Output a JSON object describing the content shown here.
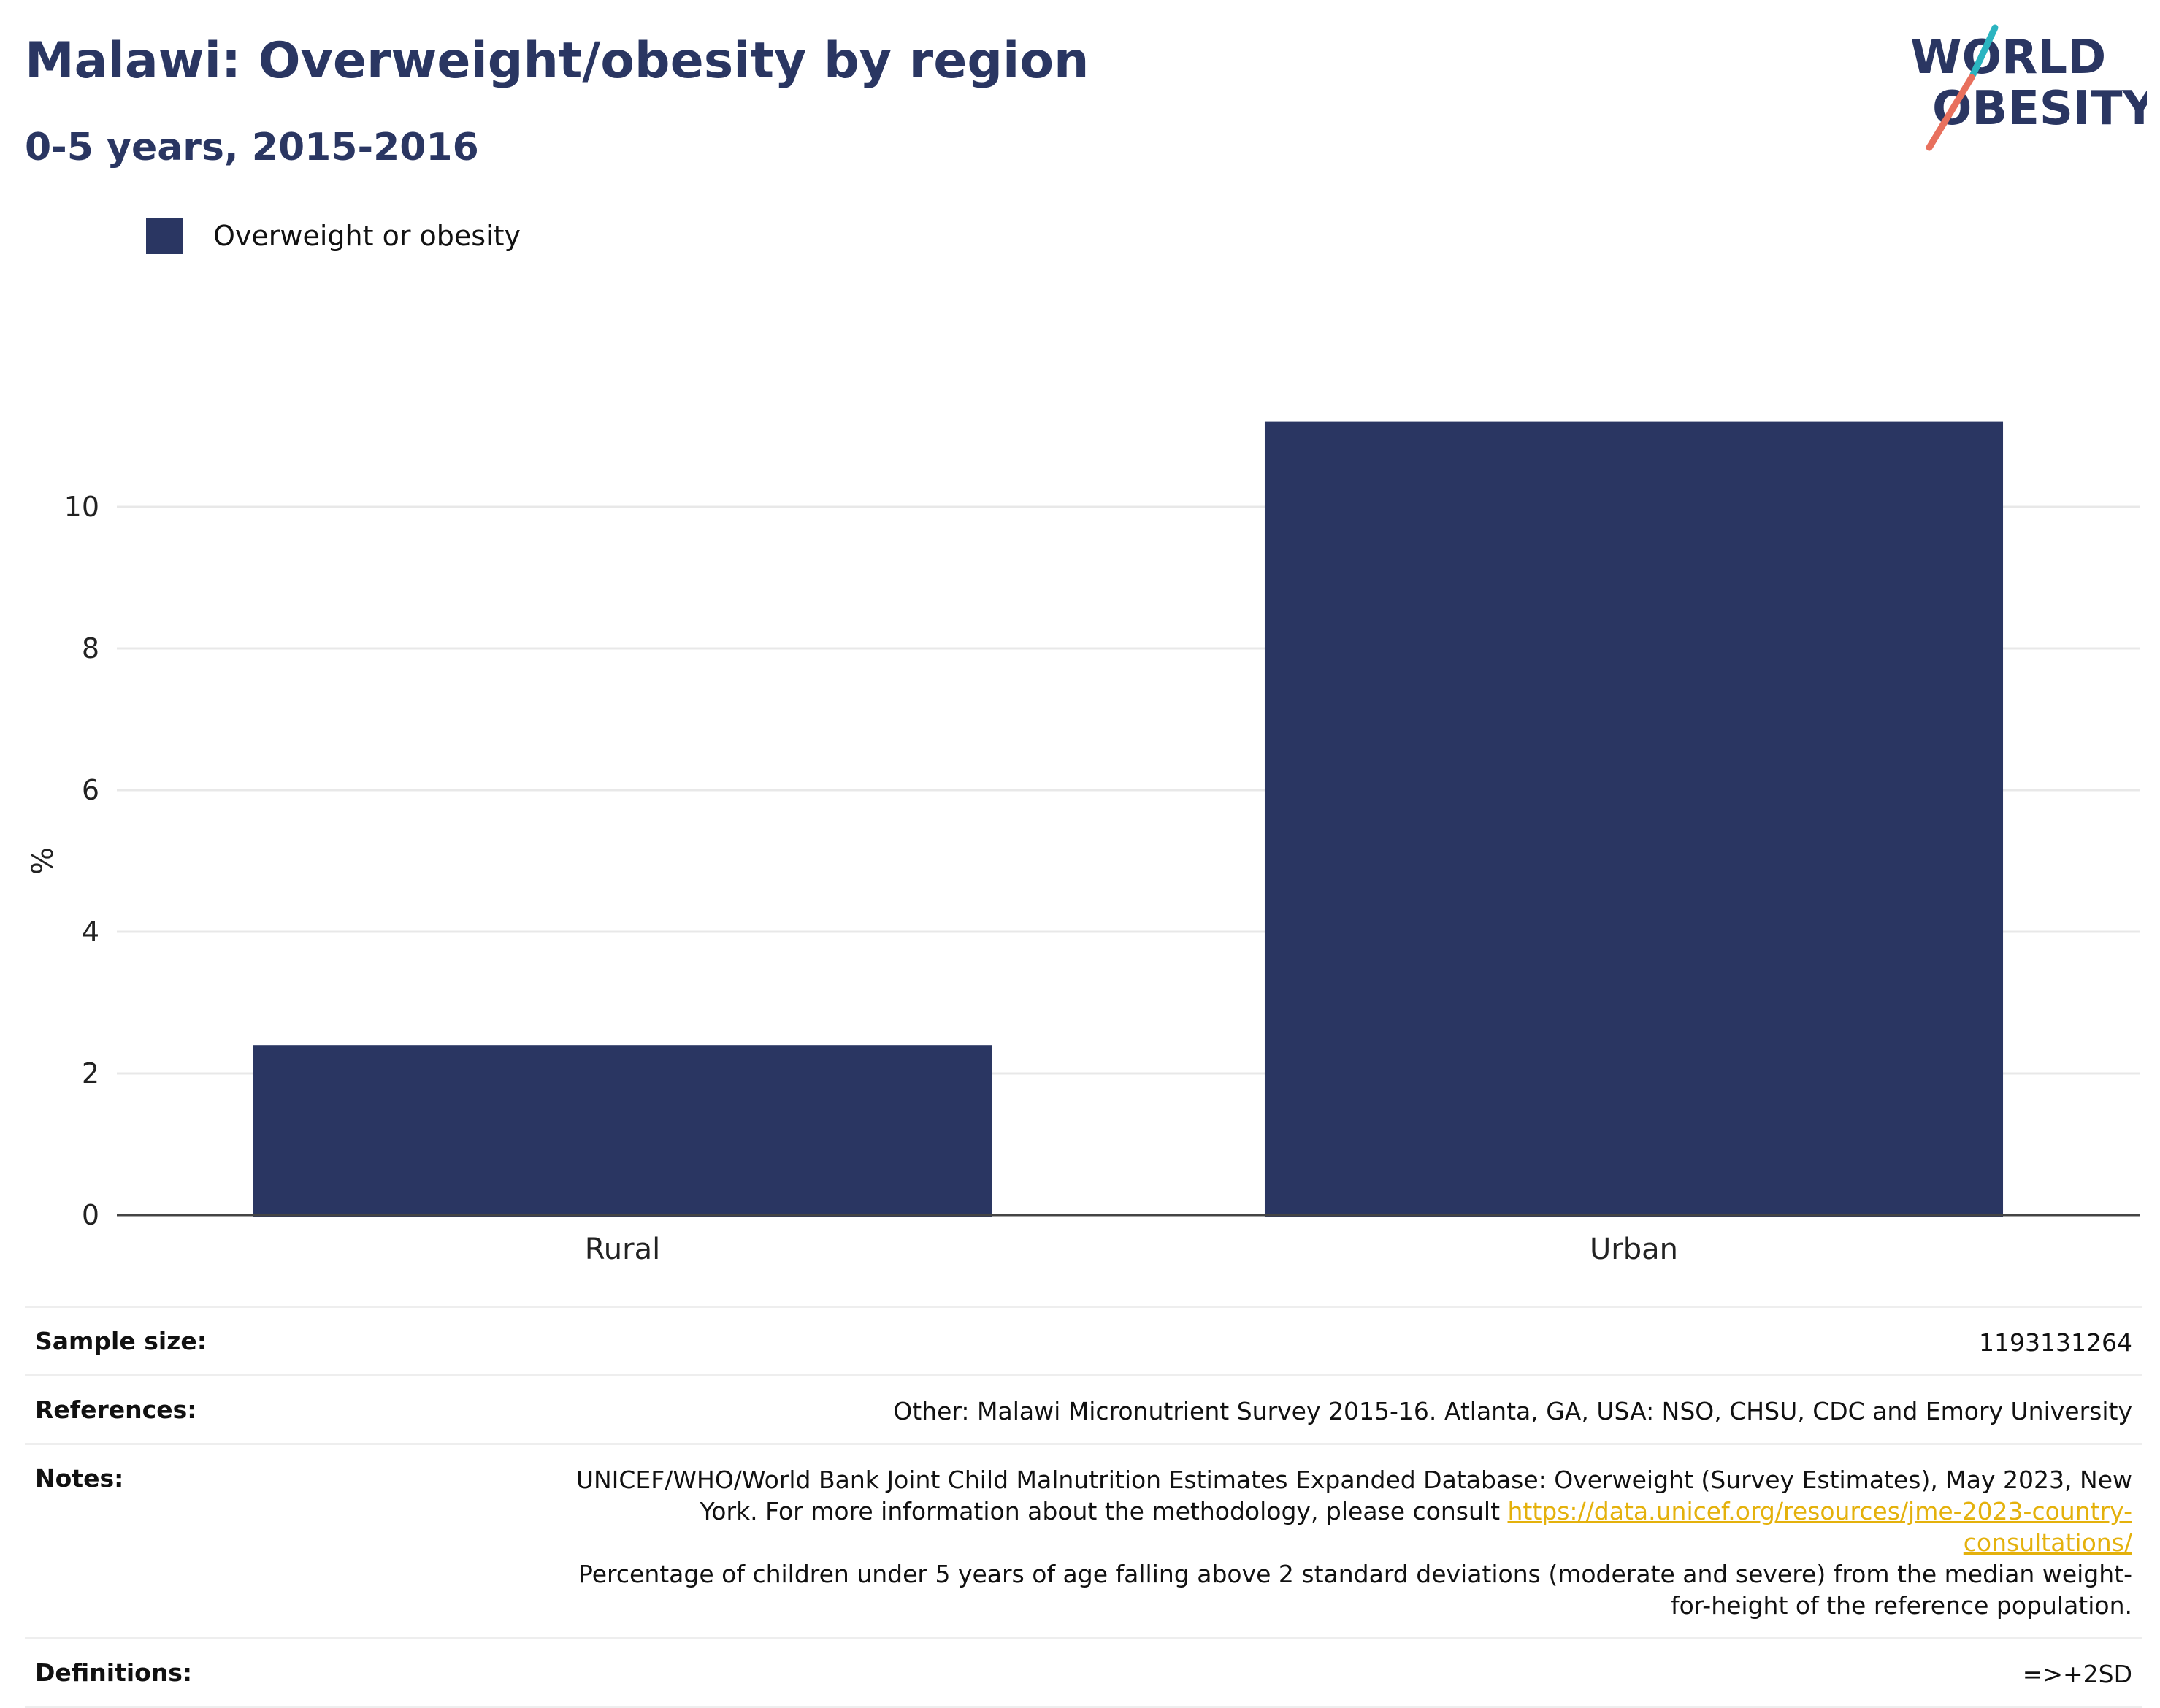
{
  "header": {
    "title": "Malawi: Overweight/obesity by region",
    "subtitle": "0-5 years, 2015-2016"
  },
  "logo": {
    "line1": "WORLD",
    "line2": "OBESITY",
    "colors": {
      "navy": "#2a3662",
      "teal": "#2bb4c0",
      "coral": "#e8705d"
    }
  },
  "legend": {
    "label": "Overweight or obesity"
  },
  "colors": {
    "bar": "#2a3662",
    "grid": "#e8e8e8",
    "axis": "#444444",
    "link": "#e4b10c"
  },
  "chart_data": {
    "type": "bar",
    "categories": [
      "Rural",
      "Urban"
    ],
    "series": [
      {
        "name": "Overweight or obesity",
        "values": [
          2.4,
          11.2
        ]
      }
    ],
    "ylabel": "%",
    "ylim": [
      0,
      12
    ],
    "yticks": [
      0,
      2,
      4,
      6,
      8,
      10
    ],
    "grid": true
  },
  "info": {
    "sample_size": {
      "label": "Sample size:",
      "value": "1193131264"
    },
    "references": {
      "label": "References:",
      "value": "Other: Malawi Micronutrient Survey 2015-16. Atlanta, GA, USA: NSO, CHSU, CDC and Emory University"
    },
    "notes": {
      "label": "Notes:",
      "text1": "UNICEF/WHO/World Bank Joint Child Malnutrition Estimates Expanded Database: Overweight (Survey Estimates), May 2023, New York. For more information about the methodology, please consult ",
      "link": "https://data.unicef.org/resources/jme-2023-country-consultations/",
      "text2": "Percentage of children under 5 years of age falling above 2 standard deviations (moderate and severe) from the median weight-for-height of the reference population."
    },
    "definitions": {
      "label": "Definitions:",
      "value": "=>+2SD"
    }
  }
}
